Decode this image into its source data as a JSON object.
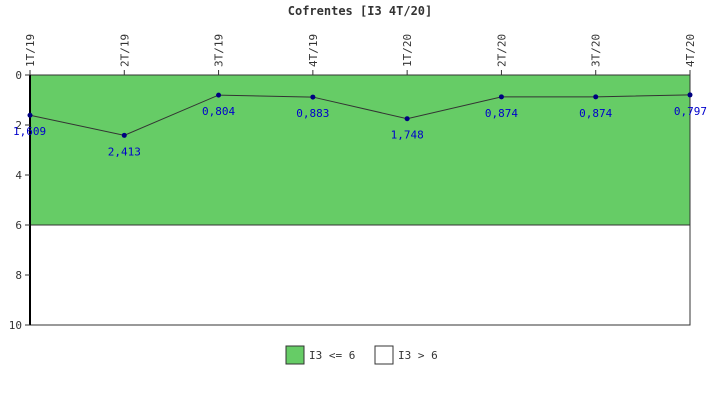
{
  "chart_data": {
    "type": "line",
    "title": "Cofrentes [I3 4T/20]",
    "categories": [
      "1T/19",
      "2T/19",
      "3T/19",
      "4T/19",
      "1T/20",
      "2T/20",
      "3T/20",
      "4T/20"
    ],
    "values": [
      1.609,
      2.413,
      0.804,
      0.883,
      1.748,
      0.874,
      0.874,
      0.797
    ],
    "data_labels": [
      "1,609",
      "2,413",
      "0,804",
      "0,883",
      "1,748",
      "0,874",
      "0,874",
      "0,797"
    ],
    "ylim": [
      0,
      10
    ],
    "y_inverted": true,
    "y_ticks": [
      0,
      2,
      4,
      6,
      8,
      10
    ],
    "bands": [
      {
        "label": "I3 <= 6",
        "from": 0,
        "to": 6,
        "color": "#66cc66"
      },
      {
        "label": "I3 > 6",
        "from": 6,
        "to": 10,
        "color": "#ffffff"
      }
    ],
    "line_color": "#333333",
    "marker_color": "#000080",
    "legend_position": "bottom"
  }
}
